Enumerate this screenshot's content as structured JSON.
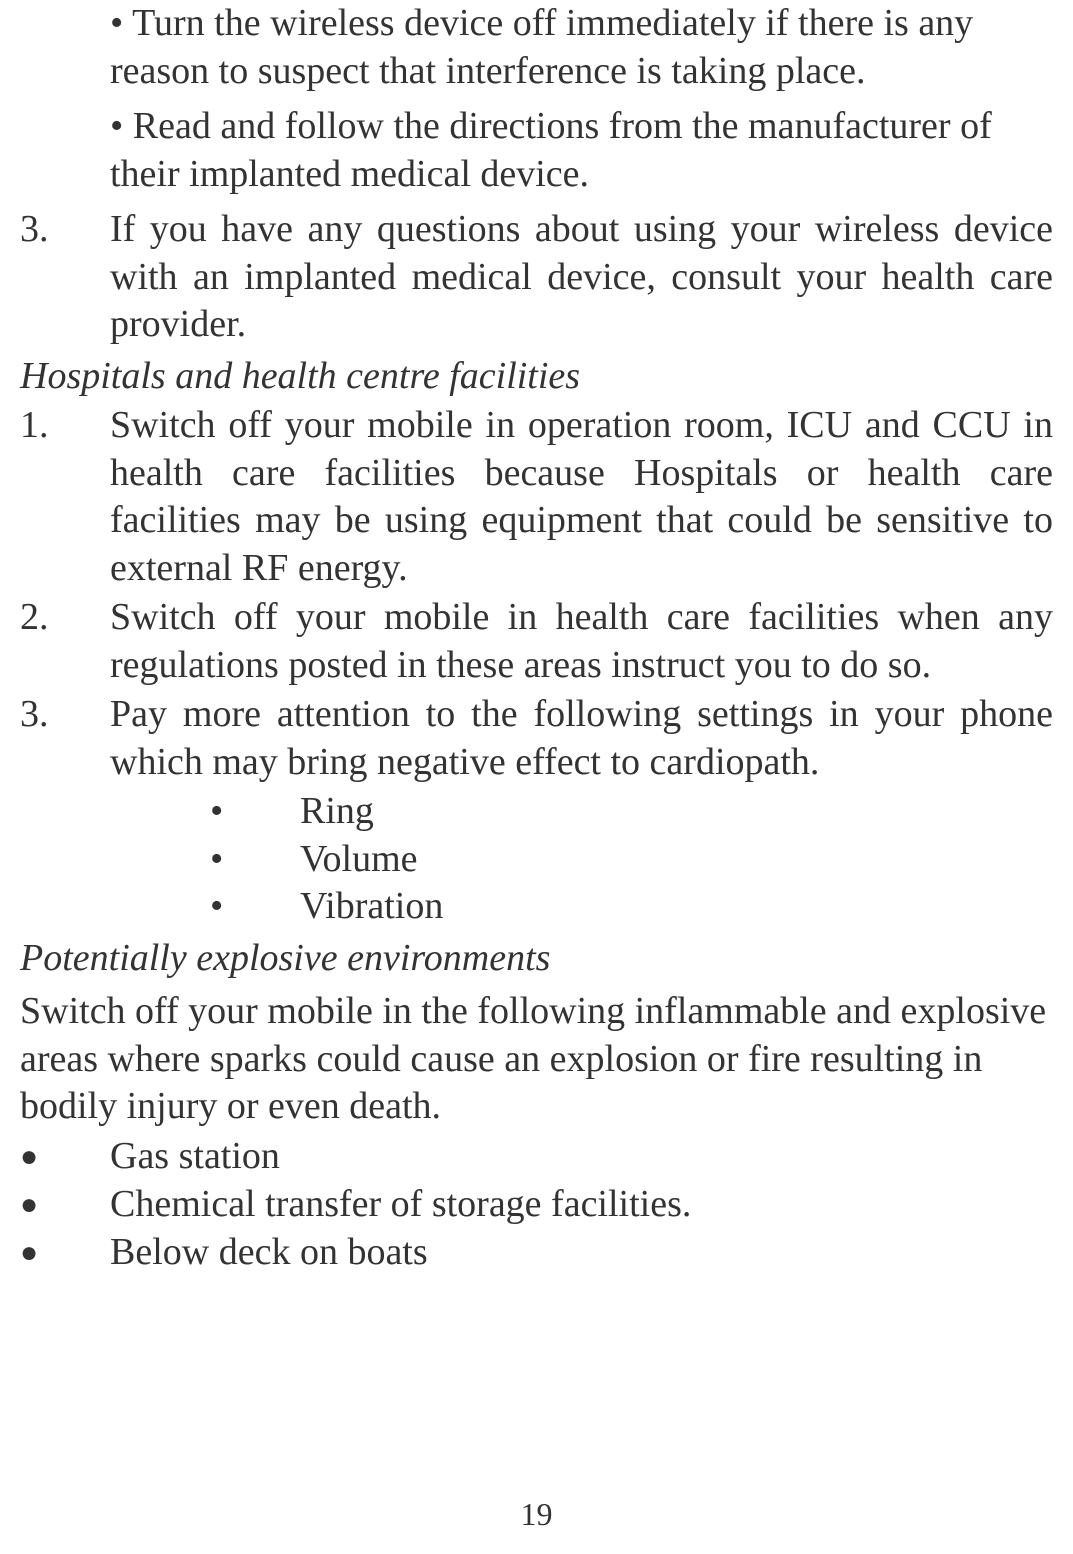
{
  "colors": {
    "text": "#333333",
    "background": "#ffffff"
  },
  "typography": {
    "font_family": "Times New Roman, serif",
    "body_fontsize_pt": 28,
    "line_height": 1.25,
    "heading_style": "italic",
    "page_number_fontsize_pt": 24
  },
  "content": {
    "intro_bullets": [
      "• Turn the wireless device off immediately if there is any reason to suspect that interference is taking place.",
      "• Read and follow the directions from the manufacturer of their implanted medical device."
    ],
    "intro_numbered": {
      "num": "3.",
      "text": "If you have any questions about using your wireless device with an implanted medical device, consult your health care provider."
    },
    "heading1": "Hospitals and health centre facilities",
    "hospital_items": [
      {
        "num": "1.",
        "text": "Switch off your mobile in operation room, ICU and CCU in health care facilities because Hospitals or health care facilities may be using equipment that could be sensitive to external RF energy."
      },
      {
        "num": "2.",
        "text": "Switch off your mobile in health care facilities when any regulations posted in these areas instruct you to do so."
      },
      {
        "num": "3.",
        "text": "Pay more attention to the following settings in your phone which may bring negative effect to cardiopath."
      }
    ],
    "settings_bullets": [
      "Ring",
      "Volume",
      "Vibration"
    ],
    "heading2": "Potentially explosive environments",
    "explosive_para": "Switch off your mobile in the following inflammable and explosive areas where sparks could cause an explosion or fire resulting in bodily injury or even death.",
    "explosive_bullets": [
      "Gas station",
      "Chemical transfer of storage facilities.",
      "Below deck on boats"
    ]
  },
  "page_number": "19"
}
